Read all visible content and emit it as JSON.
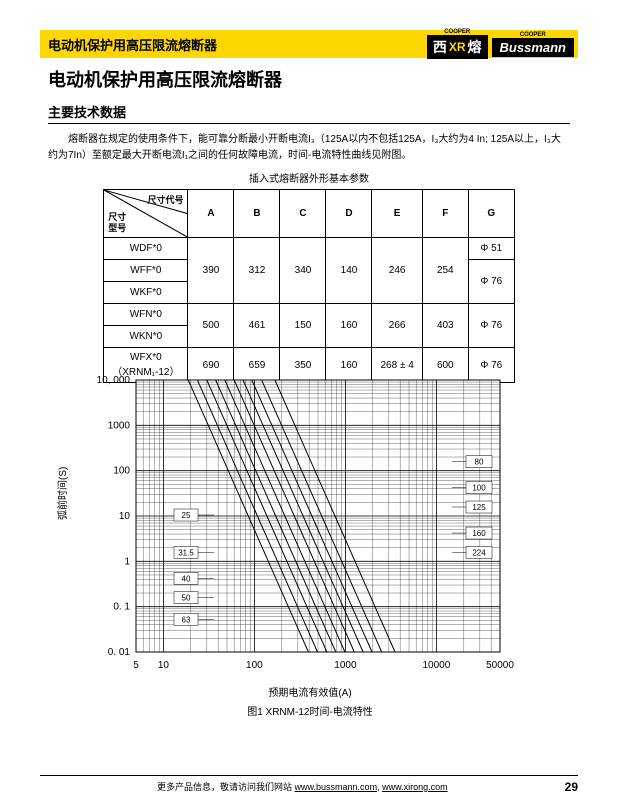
{
  "topbar": {
    "title": "电动机保护用高压限流熔断器",
    "cooper": "COOPER",
    "brand_xi": "西",
    "brand_xr": "XR",
    "brand_rong": "熔",
    "brand_buss": "Bussmann"
  },
  "page_title": "电动机保护用高压限流熔断器",
  "section_heading": "主要技术数据",
  "paragraph": "熔断器在规定的使用条件下，能可靠分断最小开断电流I₃（125A以内不包括125A，I₃大约为4 In; 125A以上，I₃大约为7In）至额定最大开断电流I₁之间的任何故障电流，时间-电流特性曲线见附图。",
  "table": {
    "caption": "插入式熔断器外形基本参数",
    "diag_top": "尺寸代号",
    "diag_mid": "尺寸",
    "diag_bot": "型号",
    "cols": [
      "A",
      "B",
      "C",
      "D",
      "E",
      "F",
      "G"
    ],
    "rows": [
      {
        "label": "WDF*0"
      },
      {
        "label": "WFF*0"
      },
      {
        "label": "WKF*0"
      },
      {
        "label": "WFN*0"
      },
      {
        "label": "WKN*0"
      },
      {
        "label": "WFX*0",
        "label2": "（XRNM₁-12）"
      }
    ],
    "grp1": {
      "A": "390",
      "B": "312",
      "C": "340",
      "D": "140",
      "E": "246",
      "F": "254"
    },
    "G1": "Φ 51",
    "G2": "Φ 76",
    "grp2": {
      "A": "500",
      "B": "461",
      "C": "150",
      "D": "160",
      "E": "266",
      "F": "403",
      "G": "Φ 76"
    },
    "grp3": {
      "A": "690",
      "B": "659",
      "C": "350",
      "D": "160",
      "E": "268 ± 4",
      "F": "600",
      "G": "Φ 76"
    }
  },
  "chart": {
    "y_ticks": [
      "10, 000",
      "1000",
      "100",
      "10",
      "1",
      "0. 1",
      "0. 01"
    ],
    "x_ticks": [
      "5",
      "10",
      "100",
      "1000",
      "10000",
      "50000"
    ],
    "curve_labels_left": [
      "25",
      "31.5",
      "40",
      "50",
      "63"
    ],
    "curve_labels_right": [
      "80",
      "100",
      "125",
      "160",
      "224"
    ],
    "y_axis_label": "弧前时间(S)",
    "x_axis_label": "预期电流有效值(A)",
    "caption": "图1 XRNM-12时间-电流特性",
    "grid_color": "#000000",
    "curve_color": "#000000",
    "bg_color": "#ffffff",
    "line_width": 1
  },
  "footer": {
    "text_prefix": "更多产品信息，敬请访问我们网站 ",
    "url1": "www.bussmann.com",
    "sep": ", ",
    "url2": "www.xirong.com",
    "page": "29"
  }
}
